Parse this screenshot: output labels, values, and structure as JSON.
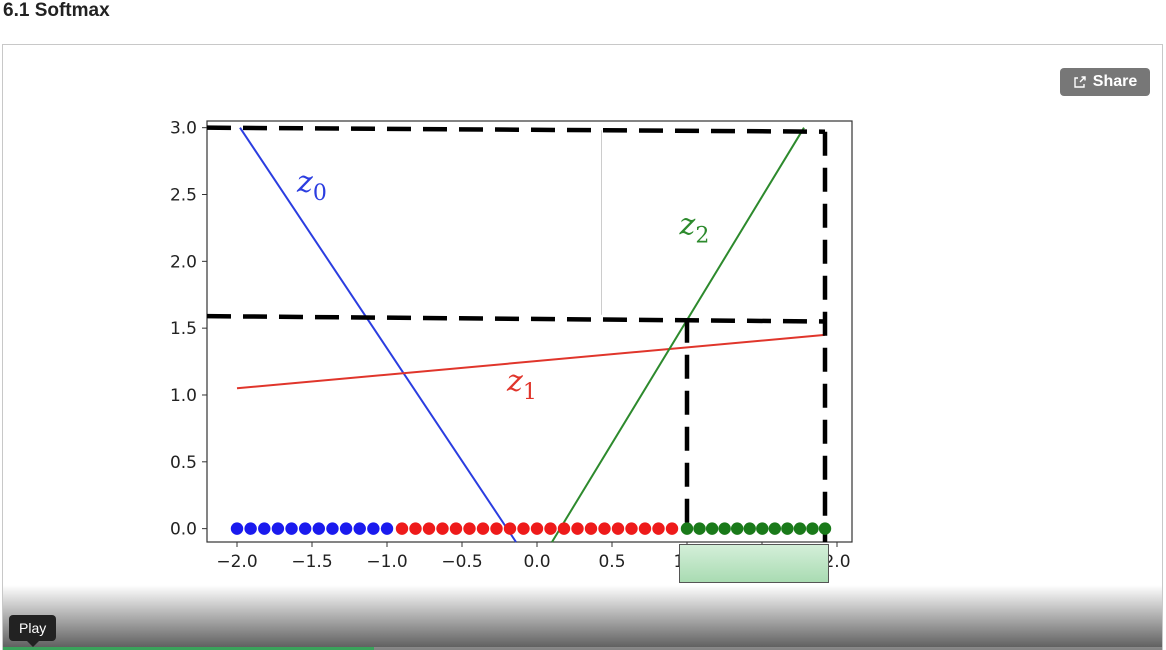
{
  "page": {
    "title": "6.1 Softmax"
  },
  "player": {
    "share_label": "Share",
    "tooltip": "Play",
    "progress": 0.32
  },
  "chart_data": {
    "type": "line",
    "xlim": [
      -2.2,
      2.1
    ],
    "ylim": [
      -0.1,
      3.05
    ],
    "xticks": [
      "−2.0",
      "−1.5",
      "−1.0",
      "−0.5",
      "0.0",
      "0.5",
      "1.0",
      "1.5",
      "2.0"
    ],
    "xtick_values": [
      -2.0,
      -1.5,
      -1.0,
      -0.5,
      0.0,
      0.5,
      1.0,
      1.5,
      2.0
    ],
    "yticks": [
      "0.0",
      "0.5",
      "1.0",
      "1.5",
      "2.0",
      "2.5",
      "3.0"
    ],
    "ytick_values": [
      0.0,
      0.5,
      1.0,
      1.5,
      2.0,
      2.5,
      3.0
    ],
    "series": [
      {
        "name": "z0",
        "label": "z",
        "sub": "0",
        "color": "#2b3de0",
        "x": [
          -1.98,
          -0.14
        ],
        "y": [
          3.0,
          -0.1
        ],
        "label_x": -1.6,
        "label_y": 2.52
      },
      {
        "name": "z1",
        "label": "z",
        "sub": "1",
        "color": "#e0352b",
        "x": [
          -2.0,
          1.92
        ],
        "y": [
          1.05,
          1.45
        ],
        "label_x": -0.2,
        "label_y": 1.03
      },
      {
        "name": "z2",
        "label": "z",
        "sub": "2",
        "color": "#2d8a2d",
        "x": [
          0.1,
          1.78
        ],
        "y": [
          -0.1,
          3.0
        ],
        "label_x": 0.95,
        "label_y": 2.2
      }
    ],
    "dashed_lines": [
      {
        "x": [
          -2.2,
          1.92
        ],
        "y": [
          3.0,
          2.97
        ]
      },
      {
        "x": [
          -2.2,
          1.92
        ],
        "y": [
          1.59,
          1.55
        ]
      },
      {
        "x": [
          1.0,
          1.0
        ],
        "y": [
          1.57,
          0.0
        ]
      },
      {
        "x": [
          1.92,
          1.92
        ],
        "y": [
          2.97,
          -0.1
        ]
      }
    ],
    "points": [
      {
        "color": "#1a1aee",
        "x_start": -2.0,
        "x_end": -1.0,
        "count": 12
      },
      {
        "color": "#ee1a1a",
        "x_start": -0.9,
        "x_end": 0.9,
        "count": 21
      },
      {
        "color": "#1a7a1a",
        "x_start": 1.0,
        "x_end": 1.92,
        "count": 12
      }
    ],
    "thin_vertical": {
      "x": 0.43,
      "y": [
        1.6,
        2.98
      ]
    }
  }
}
